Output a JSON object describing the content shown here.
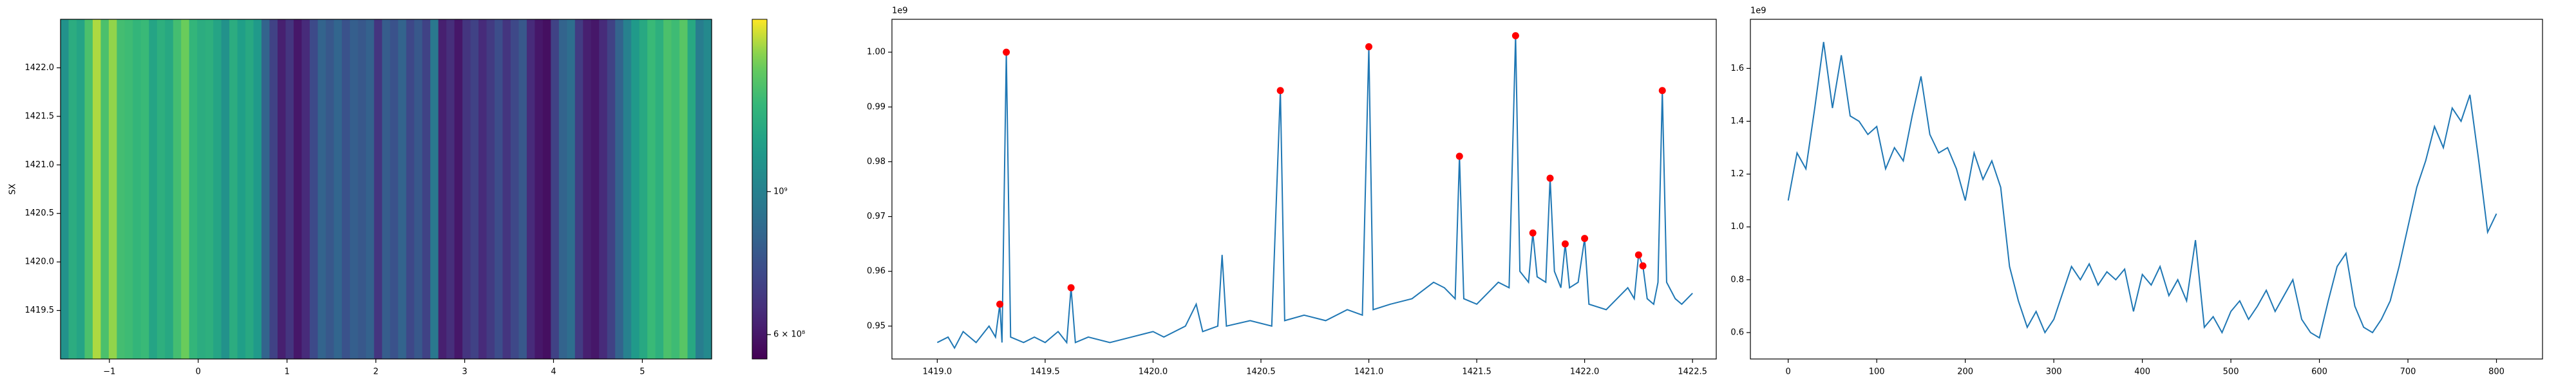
{
  "chart_data": [
    {
      "type": "heatmap",
      "ylabel": "SX",
      "colormap": "viridis",
      "color_scale": "log",
      "xlim": [
        -1.55,
        5.78
      ],
      "ylim": [
        1419.0,
        1422.5
      ],
      "xticks": [
        {
          "value": -1,
          "label": "−1"
        },
        0,
        1,
        2,
        3,
        4,
        5
      ],
      "yticks": [
        1419.5,
        {
          "value": 1420,
          "label": "1420.0"
        },
        1420.5,
        {
          "value": 1421,
          "label": "1421.0"
        },
        1421.5,
        {
          "value": 1422,
          "label": "1422.0"
        }
      ],
      "clim": [
        550000000,
        1850000000
      ],
      "cticks": [
        {
          "value": 600000000,
          "label": "6 × 10⁸"
        },
        {
          "value": 1000000000,
          "label": "10⁹"
        }
      ],
      "values": [
        1100000000.0,
        1280000000.0,
        1220000000.0,
        1450000000.0,
        1700000000.0,
        1450000000.0,
        1650000000.0,
        1420000000.0,
        1400000000.0,
        1350000000.0,
        1380000000.0,
        1220000000.0,
        1300000000.0,
        1250000000.0,
        1420000000.0,
        1570000000.0,
        1350000000.0,
        1280000000.0,
        1300000000.0,
        1220000000.0,
        1100000000.0,
        1280000000.0,
        1180000000.0,
        1250000000.0,
        1150000000.0,
        850000000.0,
        720000000.0,
        620000000.0,
        680000000.0,
        600000000.0,
        650000000.0,
        750000000.0,
        850000000.0,
        800000000.0,
        860000000.0,
        780000000.0,
        830000000.0,
        800000000.0,
        840000000.0,
        680000000.0,
        820000000.0,
        780000000.0,
        850000000.0,
        740000000.0,
        800000000.0,
        720000000.0,
        950000000.0,
        620000000.0,
        660000000.0,
        600000000.0,
        680000000.0,
        720000000.0,
        650000000.0,
        700000000.0,
        760000000.0,
        680000000.0,
        740000000.0,
        800000000.0,
        650000000.0,
        600000000.0,
        580000000.0,
        720000000.0,
        850000000.0,
        900000000.0,
        700000000.0,
        620000000.0,
        600000000.0,
        650000000.0,
        720000000.0,
        850000000.0,
        1000000000.0,
        1150000000.0,
        1250000000.0,
        1380000000.0,
        1300000000.0,
        1450000000.0,
        1400000000.0,
        1500000000.0,
        1250000000.0,
        980000000.0,
        1050000000.0
      ]
    },
    {
      "type": "line",
      "offset_label": "1e9",
      "color": "#1f77b4",
      "xlim": [
        1418.79,
        1422.61
      ],
      "ylim": [
        0.944,
        1.006
      ],
      "xticks": [
        {
          "value": 1419,
          "label": "1419.0"
        },
        1419.5,
        {
          "value": 1420,
          "label": "1420.0"
        },
        1420.5,
        {
          "value": 1421,
          "label": "1421.0"
        },
        1421.5,
        {
          "value": 1422,
          "label": "1422.0"
        },
        1422.5
      ],
      "yticks": [
        0.95,
        0.96,
        0.97,
        0.98,
        0.99,
        {
          "value": 1,
          "label": "1.00"
        }
      ],
      "x": [
        1419.0,
        1419.05,
        1419.08,
        1419.12,
        1419.18,
        1419.24,
        1419.27,
        1419.29,
        1419.3,
        1419.32,
        1419.34,
        1419.4,
        1419.45,
        1419.5,
        1419.56,
        1419.6,
        1419.62,
        1419.64,
        1419.7,
        1419.8,
        1419.9,
        1420.0,
        1420.05,
        1420.15,
        1420.2,
        1420.23,
        1420.3,
        1420.32,
        1420.34,
        1420.45,
        1420.55,
        1420.59,
        1420.61,
        1420.7,
        1420.8,
        1420.9,
        1420.97,
        1421.0,
        1421.02,
        1421.1,
        1421.2,
        1421.3,
        1421.35,
        1421.4,
        1421.42,
        1421.44,
        1421.5,
        1421.55,
        1421.6,
        1421.65,
        1421.68,
        1421.7,
        1421.74,
        1421.76,
        1421.78,
        1421.82,
        1421.84,
        1421.86,
        1421.89,
        1421.91,
        1421.93,
        1421.97,
        1422.0,
        1422.02,
        1422.1,
        1422.15,
        1422.2,
        1422.23,
        1422.25,
        1422.27,
        1422.29,
        1422.32,
        1422.34,
        1422.36,
        1422.38,
        1422.42,
        1422.45,
        1422.5
      ],
      "values": [
        0.947,
        0.948,
        0.946,
        0.949,
        0.947,
        0.95,
        0.948,
        0.954,
        0.947,
        1.0,
        0.948,
        0.947,
        0.948,
        0.947,
        0.949,
        0.947,
        0.957,
        0.947,
        0.948,
        0.947,
        0.948,
        0.949,
        0.948,
        0.95,
        0.954,
        0.949,
        0.95,
        0.963,
        0.95,
        0.951,
        0.95,
        0.993,
        0.951,
        0.952,
        0.951,
        0.953,
        0.952,
        1.001,
        0.953,
        0.954,
        0.955,
        0.958,
        0.957,
        0.955,
        0.981,
        0.955,
        0.954,
        0.956,
        0.958,
        0.957,
        1.003,
        0.96,
        0.958,
        0.967,
        0.959,
        0.958,
        0.977,
        0.96,
        0.957,
        0.965,
        0.957,
        0.958,
        0.966,
        0.954,
        0.953,
        0.955,
        0.957,
        0.955,
        0.963,
        0.961,
        0.955,
        0.954,
        0.958,
        0.993,
        0.958,
        0.955,
        0.954,
        0.956
      ],
      "markers": {
        "color": "red",
        "x": [
          1419.29,
          1419.32,
          1419.62,
          1420.59,
          1421.0,
          1421.42,
          1421.68,
          1421.76,
          1421.84,
          1421.91,
          1422.0,
          1422.25,
          1422.27,
          1422.36
        ],
        "values": [
          0.954,
          1.0,
          0.957,
          0.993,
          1.001,
          0.981,
          1.003,
          0.967,
          0.977,
          0.965,
          0.966,
          0.963,
          0.961,
          0.993
        ]
      }
    },
    {
      "type": "line",
      "offset_label": "1e9",
      "color": "#1f77b4",
      "xlim": [
        -42.7,
        852
      ],
      "ylim": [
        0.5,
        1.786
      ],
      "xticks": [
        0,
        100,
        200,
        300,
        400,
        500,
        600,
        700,
        800
      ],
      "yticks": [
        0.6,
        0.8,
        {
          "value": 1,
          "label": "1.0"
        },
        1.2,
        1.4,
        1.6
      ],
      "x": [
        0,
        10,
        20,
        30,
        40,
        50,
        60,
        70,
        80,
        90,
        100,
        110,
        120,
        130,
        140,
        150,
        160,
        170,
        180,
        190,
        200,
        210,
        220,
        230,
        240,
        250,
        260,
        270,
        280,
        290,
        300,
        310,
        320,
        330,
        340,
        350,
        360,
        370,
        380,
        390,
        400,
        410,
        420,
        430,
        440,
        450,
        460,
        470,
        480,
        490,
        500,
        510,
        520,
        530,
        540,
        550,
        560,
        570,
        580,
        590,
        600,
        610,
        620,
        630,
        640,
        650,
        660,
        670,
        680,
        690,
        700,
        710,
        720,
        730,
        740,
        750,
        760,
        770,
        780,
        790,
        800
      ],
      "values": [
        1.1,
        1.28,
        1.22,
        1.45,
        1.7,
        1.45,
        1.65,
        1.42,
        1.4,
        1.35,
        1.38,
        1.22,
        1.3,
        1.25,
        1.42,
        1.57,
        1.35,
        1.28,
        1.3,
        1.22,
        1.1,
        1.28,
        1.18,
        1.25,
        1.15,
        0.85,
        0.72,
        0.62,
        0.68,
        0.6,
        0.65,
        0.75,
        0.85,
        0.8,
        0.86,
        0.78,
        0.83,
        0.8,
        0.84,
        0.68,
        0.82,
        0.78,
        0.85,
        0.74,
        0.8,
        0.72,
        0.95,
        0.62,
        0.66,
        0.6,
        0.68,
        0.72,
        0.65,
        0.7,
        0.76,
        0.68,
        0.74,
        0.8,
        0.65,
        0.6,
        0.58,
        0.72,
        0.85,
        0.9,
        0.7,
        0.62,
        0.6,
        0.65,
        0.72,
        0.85,
        1.0,
        1.15,
        1.25,
        1.38,
        1.3,
        1.45,
        1.4,
        1.5,
        1.25,
        0.98,
        1.05
      ]
    }
  ]
}
